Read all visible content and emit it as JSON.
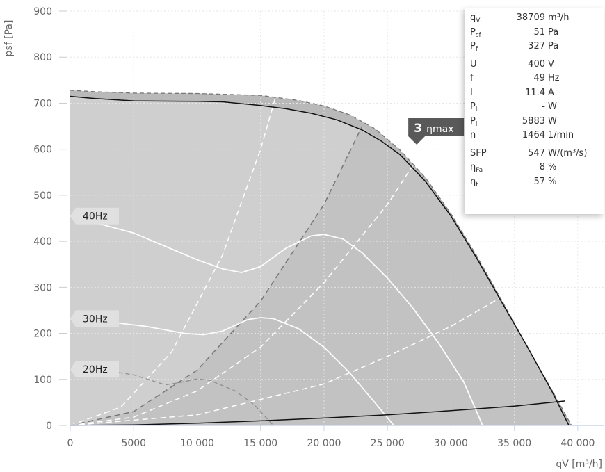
{
  "chart_data": {
    "type": "line",
    "xlabel": "qV [m³/h]",
    "ylabel": "psf [Pa]",
    "xlim": [
      0,
      40500
    ],
    "ylim": [
      0,
      900
    ],
    "x_ticks": [
      {
        "value": 0,
        "label": "0"
      },
      {
        "value": 5000,
        "label": "5000"
      },
      {
        "value": 10000,
        "label": "10 000"
      },
      {
        "value": 15000,
        "label": "15 000"
      },
      {
        "value": 20000,
        "label": "20 000"
      },
      {
        "value": 25000,
        "label": "25 000"
      },
      {
        "value": 30000,
        "label": "30 000"
      },
      {
        "value": 35000,
        "label": "35 000"
      },
      {
        "value": 40000,
        "label": "40 000"
      }
    ],
    "y_ticks": [
      {
        "value": 0,
        "label": "0"
      },
      {
        "value": 100,
        "label": "100"
      },
      {
        "value": 200,
        "label": "200"
      },
      {
        "value": 300,
        "label": "300"
      },
      {
        "value": 400,
        "label": "400"
      },
      {
        "value": 500,
        "label": "500"
      },
      {
        "value": 600,
        "label": "600"
      },
      {
        "value": 700,
        "label": "700"
      },
      {
        "value": 800,
        "label": "800"
      },
      {
        "value": 900,
        "label": "900"
      }
    ],
    "grid": true,
    "colors": {
      "envelope_fill": "#b9b9b9",
      "curve_area_fill": "#cfcfcf",
      "efficiency_zone_fill": "#c2c2c2",
      "main_curve": "#111111",
      "label_flag": "#e0e0e0",
      "marker_flag": "#595959"
    },
    "envelope_curve": {
      "style": "dashed",
      "points": [
        [
          0,
          728
        ],
        [
          2000,
          725
        ],
        [
          5000,
          722
        ],
        [
          10000,
          721
        ],
        [
          15000,
          717
        ],
        [
          18000,
          706
        ],
        [
          20000,
          694
        ],
        [
          22000,
          675
        ],
        [
          24000,
          645
        ],
        [
          26000,
          598
        ],
        [
          28000,
          538
        ],
        [
          30000,
          460
        ],
        [
          32000,
          370
        ],
        [
          34000,
          272
        ],
        [
          36000,
          172
        ],
        [
          38000,
          75
        ],
        [
          39500,
          0
        ]
      ]
    },
    "series": [
      {
        "style": "solid",
        "points": [
          [
            0,
            715
          ],
          [
            2000,
            710
          ],
          [
            5000,
            705
          ],
          [
            10000,
            704
          ],
          [
            12000,
            703
          ],
          [
            15000,
            695
          ],
          [
            17000,
            688
          ],
          [
            19000,
            678
          ],
          [
            21000,
            664
          ],
          [
            23000,
            642
          ],
          [
            24500,
            618
          ],
          [
            26000,
            588
          ],
          [
            28000,
            530
          ],
          [
            30000,
            455
          ],
          [
            32000,
            365
          ],
          [
            34000,
            268
          ],
          [
            36000,
            172
          ],
          [
            38000,
            72
          ],
          [
            39300,
            0
          ]
        ]
      },
      {
        "style": "solid",
        "points": [
          [
            0,
            0
          ],
          [
            5000,
            1
          ],
          [
            10000,
            5
          ],
          [
            15000,
            10
          ],
          [
            20000,
            16
          ],
          [
            25000,
            23
          ],
          [
            30000,
            32
          ],
          [
            35000,
            42
          ],
          [
            39000,
            53
          ]
        ]
      }
    ],
    "frequency_curves": [
      {
        "label": "40Hz",
        "points": [
          [
            0,
            455
          ],
          [
            5000,
            418
          ],
          [
            10000,
            360
          ],
          [
            12000,
            340
          ],
          [
            13500,
            332
          ],
          [
            15000,
            345
          ],
          [
            17000,
            385
          ],
          [
            19000,
            412
          ],
          [
            20000,
            415
          ],
          [
            21500,
            405
          ],
          [
            23000,
            375
          ],
          [
            25000,
            320
          ],
          [
            27000,
            255
          ],
          [
            29000,
            180
          ],
          [
            31000,
            95
          ],
          [
            32500,
            0
          ]
        ]
      },
      {
        "label": "30Hz",
        "points": [
          [
            0,
            232
          ],
          [
            3000,
            225
          ],
          [
            6000,
            215
          ],
          [
            9000,
            200
          ],
          [
            10500,
            197
          ],
          [
            12000,
            205
          ],
          [
            14000,
            230
          ],
          [
            15000,
            234
          ],
          [
            16000,
            232
          ],
          [
            18000,
            210
          ],
          [
            20000,
            170
          ],
          [
            22000,
            115
          ],
          [
            24000,
            50
          ],
          [
            25500,
            0
          ]
        ]
      },
      {
        "label": "20Hz",
        "points": [
          [
            0,
            122
          ],
          [
            2500,
            120
          ],
          [
            5000,
            110
          ],
          [
            7500,
            88
          ],
          [
            9000,
            95
          ],
          [
            10000,
            101
          ],
          [
            11000,
            98
          ],
          [
            13000,
            75
          ],
          [
            14500,
            45
          ],
          [
            16000,
            0
          ]
        ]
      }
    ],
    "system_curves": [
      {
        "style": "dashed",
        "points": [
          [
            0,
            0
          ],
          [
            4000,
            40
          ],
          [
            8000,
            160
          ],
          [
            12000,
            370
          ],
          [
            15000,
            600
          ],
          [
            16200,
            715
          ]
        ]
      },
      {
        "style": "dashed-dark",
        "points": [
          [
            0,
            0
          ],
          [
            5000,
            30
          ],
          [
            10000,
            120
          ],
          [
            15000,
            270
          ],
          [
            20000,
            480
          ],
          [
            23000,
            650
          ]
        ]
      },
      {
        "style": "dashed",
        "points": [
          [
            0,
            0
          ],
          [
            5000,
            18
          ],
          [
            10000,
            75
          ],
          [
            15000,
            170
          ],
          [
            20000,
            310
          ],
          [
            25000,
            480
          ],
          [
            27000,
            565
          ]
        ]
      },
      {
        "style": "dashed",
        "points": [
          [
            0,
            0
          ],
          [
            10000,
            23
          ],
          [
            20000,
            90
          ],
          [
            25000,
            150
          ],
          [
            30000,
            215
          ],
          [
            35000,
            295
          ],
          [
            36500,
            300
          ]
        ]
      }
    ],
    "annotations": [
      {
        "number": "3",
        "text": "ηmax",
        "x": 27300,
        "y": 610
      }
    ]
  },
  "info_panel": {
    "group1": [
      {
        "symbol": "q",
        "sub": "V",
        "value": "38709",
        "unit": "m³/h"
      },
      {
        "symbol": "P",
        "sub": "sf",
        "value": "51",
        "unit": "Pa"
      },
      {
        "symbol": "P",
        "sub": "f",
        "value": "327",
        "unit": "Pa"
      }
    ],
    "group2": [
      {
        "symbol": "U",
        "sub": "",
        "value": "400",
        "unit": "V"
      },
      {
        "symbol": "f",
        "sub": "",
        "value": "49",
        "unit": "Hz"
      },
      {
        "symbol": "I",
        "sub": "",
        "value": "11.4",
        "unit": "A"
      },
      {
        "symbol": "P",
        "sub": "lc",
        "value": "-",
        "unit": "W"
      },
      {
        "symbol": "P",
        "sub": "l",
        "value": "5883",
        "unit": "W"
      },
      {
        "symbol": "n",
        "sub": "",
        "value": "1464",
        "unit": "1/min"
      }
    ],
    "group3": [
      {
        "symbol": "SFP",
        "sub": "",
        "value": "547",
        "unit": "W/(m³/s)"
      },
      {
        "symbol": "η",
        "sub": "Fa",
        "value": "8",
        "unit": "%"
      },
      {
        "symbol": "η",
        "sub": "t",
        "value": "57",
        "unit": "%"
      }
    ]
  }
}
